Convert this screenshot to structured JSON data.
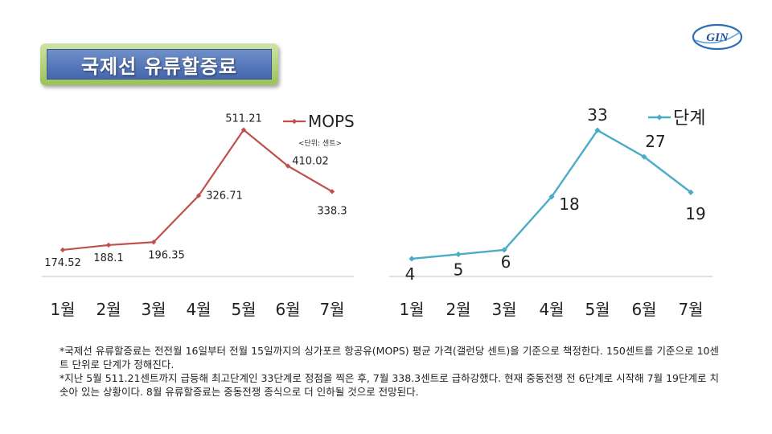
{
  "slide": {
    "title": "국제선 유류할증료",
    "logo_text": "GIN",
    "notes": [
      "*국제선 유류할증료는 전전월 16일부터 전월 15일까지의 싱가포르 항공유(MOPS) 평균 가격(갤런당 센트)을 기준으로 책정한다. 150센트를 기준으로 10센트 단위로 단계가 정해진다.",
      "*지난 5월 511.21센트까지 급등해 최고단계인 33단계로 정점을 찍은 후, 7월 338.3센트로 급하강했다. 현재 중동전쟁 전 6단계로 시작해 7월 19단계로 치솟아 있는 상황이다. 8월 유류할증료는 중동전쟁 종식으로 더 인하될 것으로 전망된다."
    ]
  },
  "chart_data": [
    {
      "type": "line",
      "categories": [
        "1월",
        "2월",
        "3월",
        "4월",
        "5월",
        "6월",
        "7월"
      ],
      "series": [
        {
          "name": "MOPS",
          "values": [
            174.52,
            188.1,
            196.35,
            326.71,
            511.21,
            410.02,
            338.3
          ],
          "labels": [
            "174.52",
            "188.1",
            "196.35",
            "326.71",
            "511.21",
            "410.02",
            "338.3"
          ]
        }
      ],
      "unit_note": "<단위: 센트>",
      "ylim": [
        100,
        560
      ],
      "color": "#c0504d",
      "legend": "top-right"
    },
    {
      "type": "line",
      "categories": [
        "1월",
        "2월",
        "3월",
        "4월",
        "5월",
        "6월",
        "7월"
      ],
      "series": [
        {
          "name": "단계",
          "values": [
            4,
            5,
            6,
            18,
            33,
            27,
            19
          ],
          "labels": [
            "4",
            "5",
            "6",
            "18",
            "33",
            "27",
            "19"
          ]
        }
      ],
      "ylim": [
        0,
        37
      ],
      "color": "#4bacc6",
      "legend": "top-right"
    }
  ]
}
